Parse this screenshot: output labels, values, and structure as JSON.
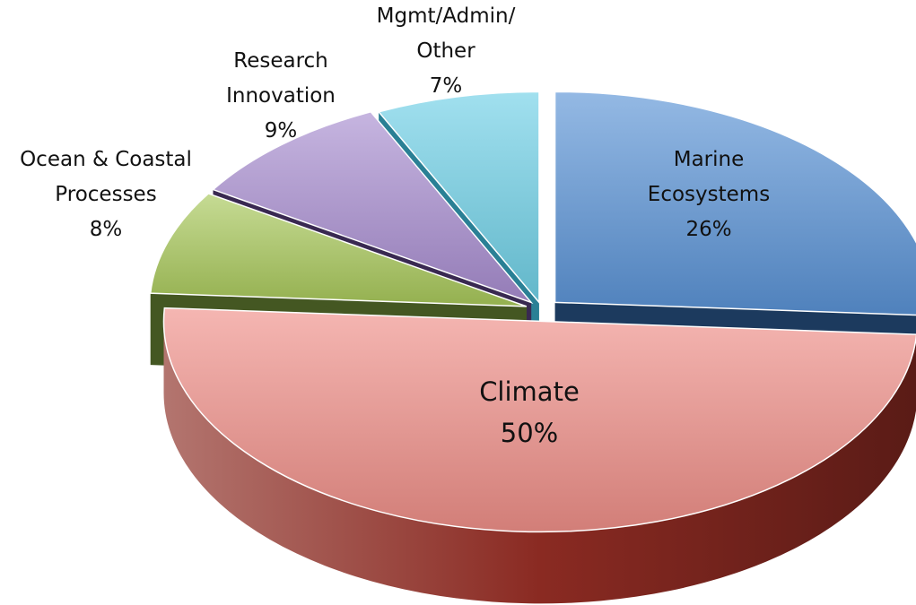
{
  "chart_data": {
    "type": "pie",
    "title": "",
    "style": "3d-exploded",
    "slices": [
      {
        "label_lines": [
          "Marine",
          "Ecosystems"
        ],
        "pct_label": "26%",
        "value": 26,
        "color": "#5a93d6",
        "side_color": "#1f4068"
      },
      {
        "label_lines": [
          "Climate"
        ],
        "pct_label": "50%",
        "value": 50,
        "color": "#ef8f88",
        "side_color": "#8a2a22"
      },
      {
        "label_lines": [
          "Ocean & Coastal",
          "Processes"
        ],
        "pct_label": "8%",
        "value": 8,
        "color": "#a8c85a",
        "side_color": "#4c6126"
      },
      {
        "label_lines": [
          "Research",
          "Innovation"
        ],
        "pct_label": "9%",
        "value": 9,
        "color": "#a88dd0",
        "side_color": "#3f2d5a"
      },
      {
        "label_lines": [
          "Mgmt/Admin/",
          "Other"
        ],
        "pct_label": "7%",
        "value": 7,
        "color": "#6fd0e6",
        "side_color": "#2f8ea6"
      }
    ]
  }
}
